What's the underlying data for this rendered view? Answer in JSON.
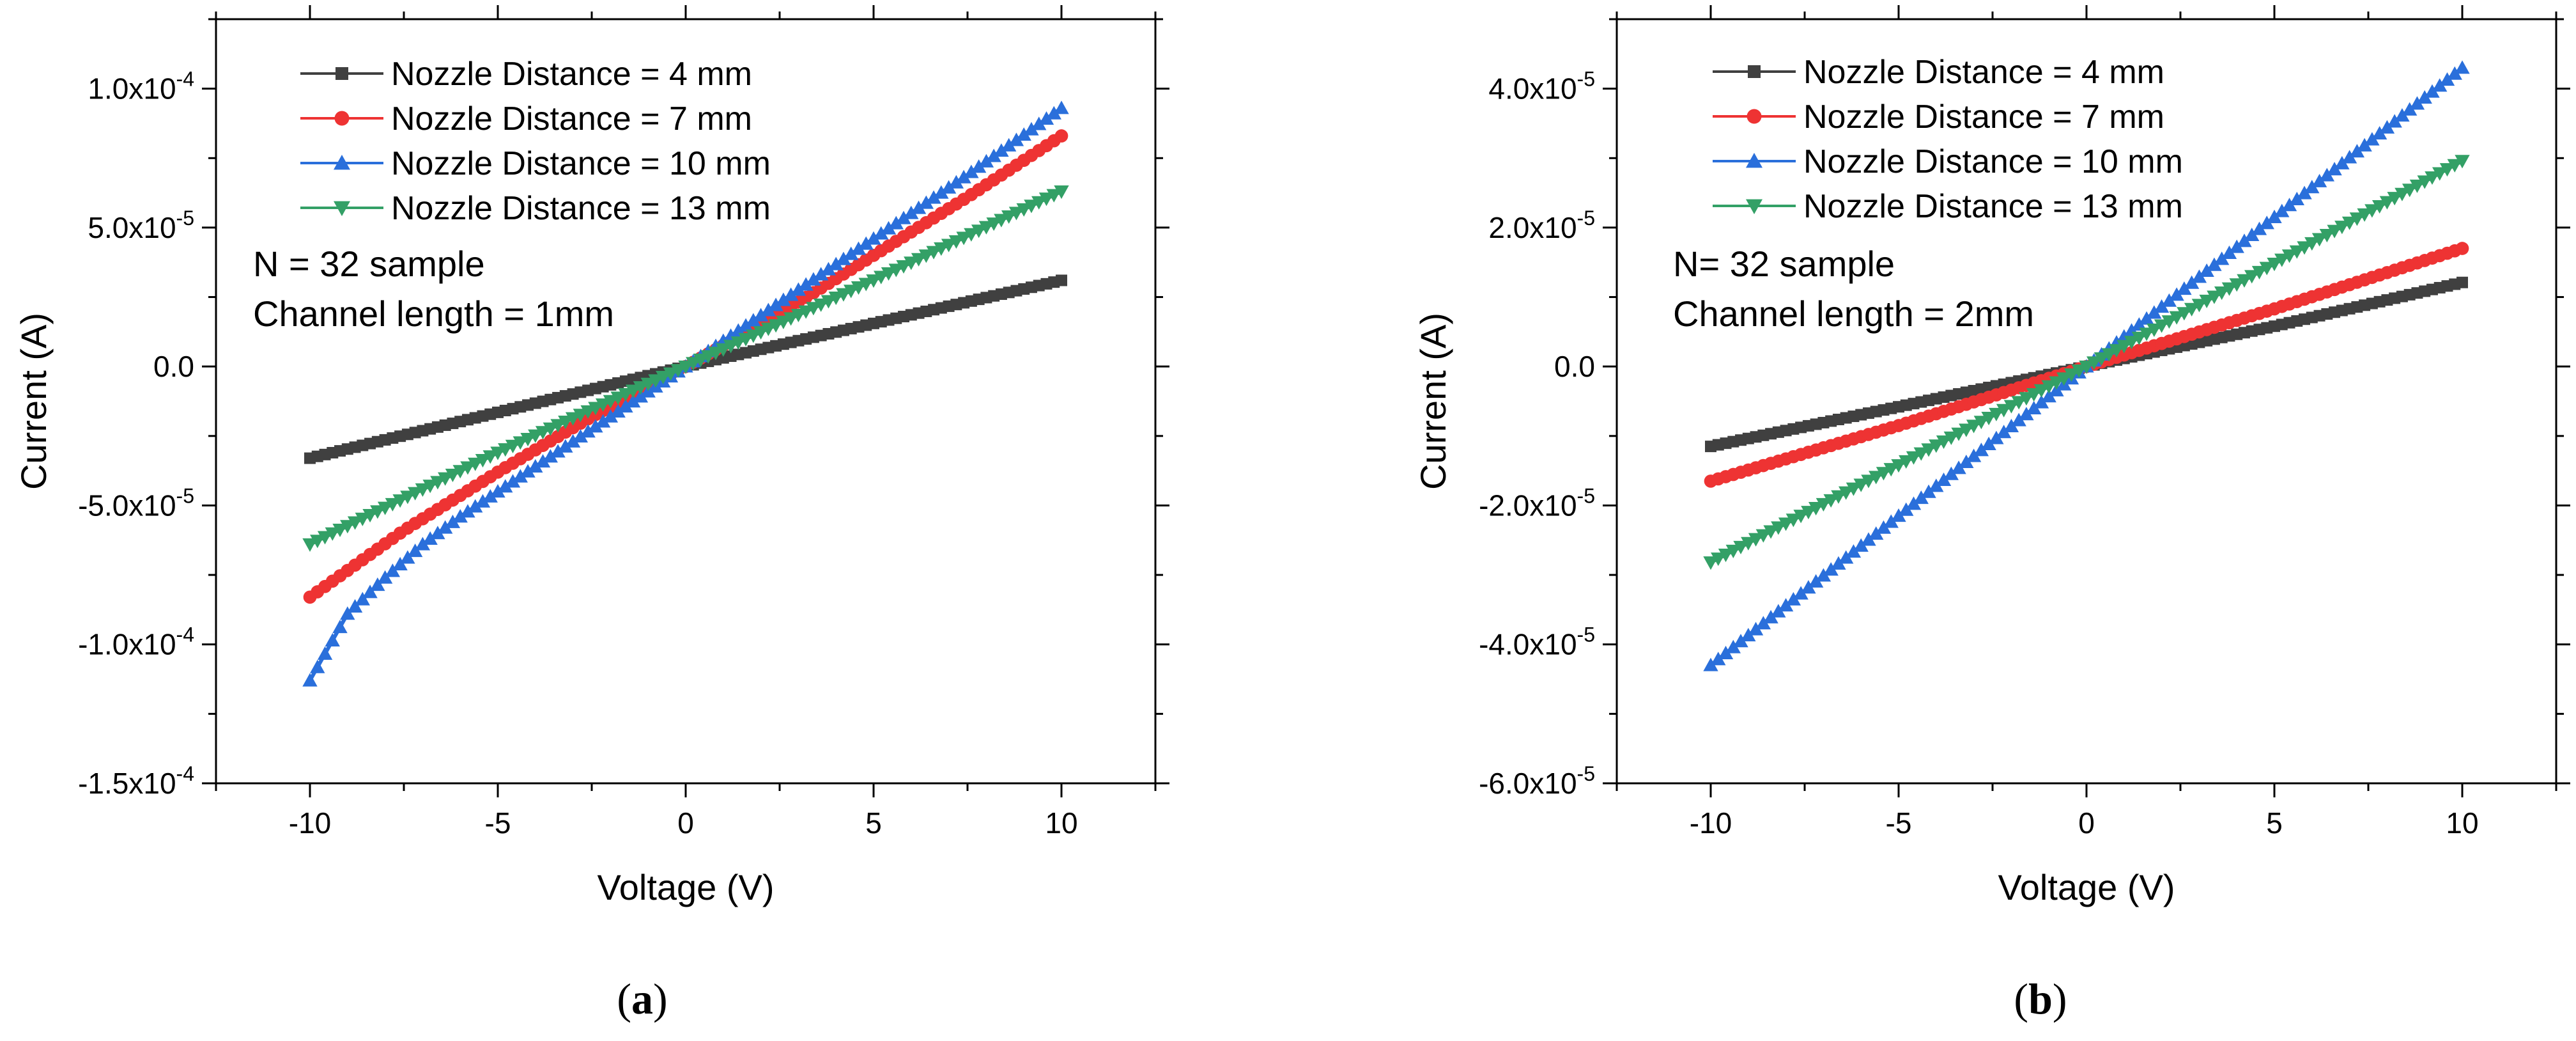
{
  "chart_data": [
    {
      "type": "line",
      "panel_label": "a",
      "xlabel": "Voltage (V)",
      "ylabel": "Current (A)",
      "xlim": [
        -12.5,
        12.5
      ],
      "ylim": [
        -0.00015,
        0.000125
      ],
      "x_ticks": [
        -10,
        -5,
        0,
        5,
        10
      ],
      "x_tick_labels": [
        "-10",
        "-5",
        "0",
        "5",
        "10"
      ],
      "y_ticks": [
        -0.00015,
        -0.0001,
        -5e-05,
        0,
        5e-05,
        0.0001
      ],
      "y_tick_labels": [
        {
          "mant": "-1.5x10",
          "exp": "-4"
        },
        {
          "mant": "-1.0x10",
          "exp": "-4"
        },
        {
          "mant": "-5.0x10",
          "exp": "-5"
        },
        {
          "mant": "0.0",
          "exp": ""
        },
        {
          "mant": "5.0x10",
          "exp": "-5"
        },
        {
          "mant": "1.0x10",
          "exp": "-4"
        }
      ],
      "annotations": [
        "N = 32 sample",
        "Channel length = 1mm"
      ],
      "legend_position": "top-left",
      "series": [
        {
          "name": "Nozzle Distance = 4 mm",
          "color": "#404040",
          "marker": "square",
          "x": [
            -10,
            -5,
            0,
            5,
            10
          ],
          "values": [
            -3.3e-05,
            -1.65e-05,
            0,
            1.55e-05,
            3.1e-05
          ]
        },
        {
          "name": "Nozzle Distance = 7 mm",
          "color": "#ee3333",
          "marker": "circle",
          "x": [
            -10,
            -7.5,
            -5,
            -2.5,
            0,
            2.5,
            5,
            7.5,
            10
          ],
          "values": [
            -8.3e-05,
            -5.9e-05,
            -3.8e-05,
            -1.8e-05,
            0,
            1.9e-05,
            4e-05,
            6.1e-05,
            8.3e-05
          ]
        },
        {
          "name": "Nozzle Distance = 10 mm",
          "color": "#2a6fdb",
          "marker": "triangle-up",
          "x": [
            -10,
            -9,
            -8,
            -7,
            -6,
            -5,
            -4,
            -3,
            -2,
            -1,
            0,
            2.5,
            5,
            7.5,
            10
          ],
          "values": [
            -0.000113,
            -8.9e-05,
            -7.6e-05,
            -6.4e-05,
            -5.4e-05,
            -4.5e-05,
            -3.6e-05,
            -2.7e-05,
            -1.8e-05,
            -9e-06,
            0,
            2.3e-05,
            4.6e-05,
            6.9e-05,
            9.3e-05
          ]
        },
        {
          "name": "Nozzle Distance = 13 mm",
          "color": "#33a066",
          "marker": "triangle-down",
          "x": [
            -10,
            -5,
            0,
            5,
            10
          ],
          "values": [
            -6.4e-05,
            -3.1e-05,
            0,
            3.1e-05,
            6.3e-05
          ]
        }
      ]
    },
    {
      "type": "line",
      "panel_label": "b",
      "xlabel": "Voltage (V)",
      "ylabel": "Current (A)",
      "xlim": [
        -12.5,
        12.5
      ],
      "ylim": [
        -6e-05,
        5e-05
      ],
      "x_ticks": [
        -10,
        -5,
        0,
        5,
        10
      ],
      "x_tick_labels": [
        "-10",
        "-5",
        "0",
        "5",
        "10"
      ],
      "y_ticks": [
        -6e-05,
        -4e-05,
        -2e-05,
        0,
        2e-05,
        4e-05
      ],
      "y_tick_labels": [
        {
          "mant": "-6.0x10",
          "exp": "-5"
        },
        {
          "mant": "-4.0x10",
          "exp": "-5"
        },
        {
          "mant": "-2.0x10",
          "exp": "-5"
        },
        {
          "mant": "0.0",
          "exp": ""
        },
        {
          "mant": "2.0x10",
          "exp": "-5"
        },
        {
          "mant": "4.0x10",
          "exp": "-5"
        }
      ],
      "annotations": [
        "N= 32 sample",
        "Channel length = 2mm"
      ],
      "legend_position": "top-left",
      "series": [
        {
          "name": "Nozzle Distance = 4 mm",
          "color": "#404040",
          "marker": "square",
          "x": [
            -10,
            -5,
            0,
            5,
            10
          ],
          "values": [
            -1.15e-05,
            -5.8e-06,
            0,
            5.8e-06,
            1.21e-05
          ]
        },
        {
          "name": "Nozzle Distance = 7 mm",
          "color": "#ee3333",
          "marker": "circle",
          "x": [
            -10,
            -5,
            0,
            5,
            10
          ],
          "values": [
            -1.65e-05,
            -8.5e-06,
            0,
            8.3e-06,
            1.7e-05
          ]
        },
        {
          "name": "Nozzle Distance = 10 mm",
          "color": "#2a6fdb",
          "marker": "triangle-up",
          "x": [
            -10,
            -5,
            0,
            5,
            10
          ],
          "values": [
            -4.3e-05,
            -2.15e-05,
            0,
            2.15e-05,
            4.3e-05
          ]
        },
        {
          "name": "Nozzle Distance = 13 mm",
          "color": "#33a066",
          "marker": "triangle-down",
          "x": [
            -10,
            -5,
            0,
            5,
            10
          ],
          "values": [
            -2.82e-05,
            -1.42e-05,
            0,
            1.48e-05,
            2.96e-05
          ]
        }
      ]
    }
  ]
}
